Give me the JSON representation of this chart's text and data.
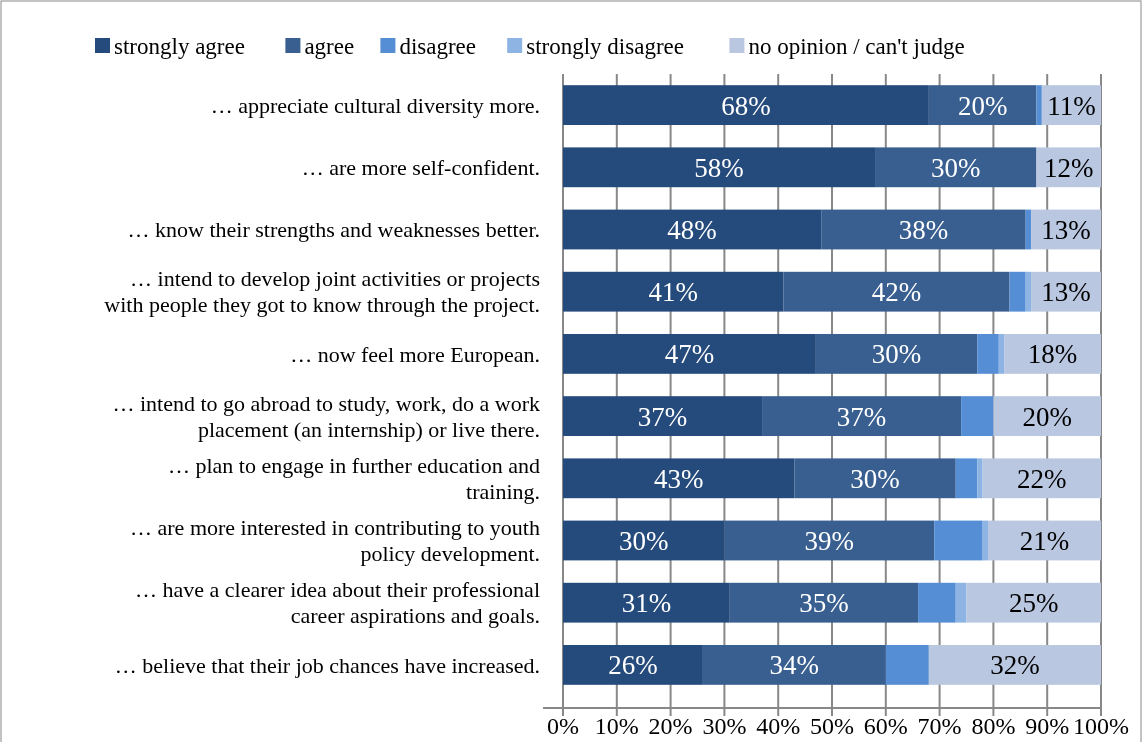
{
  "chart_data": {
    "type": "bar",
    "orientation": "horizontal",
    "stacked": true,
    "legend": "top",
    "grid": "x",
    "categories": [
      "… appreciate cultural diversity more.",
      "… are more self-confident.",
      "… know their strengths and weaknesses better.",
      "… intend to develop joint activities or projects\nwith people they got to know through the project.",
      "… now feel more European.",
      "… intend to go abroad to study, work, do a work\nplacement (an internship) or live there.",
      "… plan to engage in further education and\ntraining.",
      "… are more interested in contributing to youth\npolicy development.",
      "… have a clearer idea about their professional\ncareer aspirations and goals.",
      "… believe that their job chances have increased."
    ],
    "series": [
      {
        "name": "strongly agree",
        "color": "#254a7c",
        "values": [
          68,
          58,
          48,
          41,
          47,
          37,
          43,
          30,
          31,
          26
        ],
        "value_labels": [
          "68%",
          "58%",
          "48%",
          "41%",
          "47%",
          "37%",
          "43%",
          "30%",
          "31%",
          "26%"
        ]
      },
      {
        "name": "agree",
        "color": "#385f8f",
        "values": [
          20,
          30,
          38,
          42,
          30,
          37,
          30,
          39,
          35,
          34
        ],
        "value_labels": [
          "20%",
          "30%",
          "38%",
          "42%",
          "30%",
          "37%",
          "30%",
          "39%",
          "35%",
          "34%"
        ]
      },
      {
        "name": "disagree",
        "color": "#558ed5",
        "values": [
          1,
          0,
          1,
          3,
          4,
          6,
          4,
          9,
          7,
          8
        ],
        "value_labels": [
          null,
          null,
          null,
          null,
          null,
          null,
          null,
          null,
          null,
          null
        ]
      },
      {
        "name": "strongly disagree",
        "color": "#8db4e2",
        "values": [
          0,
          0,
          0,
          1,
          1,
          0,
          1,
          1,
          2,
          0
        ],
        "value_labels": [
          null,
          null,
          null,
          null,
          null,
          null,
          null,
          null,
          null,
          null
        ]
      },
      {
        "name": "no opinion / can't judge",
        "color": "#b9c7e1",
        "values": [
          11,
          12,
          13,
          13,
          18,
          20,
          22,
          21,
          25,
          32
        ],
        "value_labels": [
          "11%",
          "12%",
          "13%",
          "13%",
          "18%",
          "20%",
          "22%",
          "21%",
          "25%",
          "32%"
        ]
      }
    ],
    "xlim": [
      0,
      100
    ],
    "xticks": [
      {
        "value": 0,
        "label": "0%"
      },
      {
        "value": 10,
        "label": "10%"
      },
      {
        "value": 20,
        "label": "20%"
      },
      {
        "value": 30,
        "label": "30%"
      },
      {
        "value": 40,
        "label": "40%"
      },
      {
        "value": 50,
        "label": "50%"
      },
      {
        "value": 60,
        "label": "60%"
      },
      {
        "value": 70,
        "label": "70%"
      },
      {
        "value": 80,
        "label": "80%"
      },
      {
        "value": 90,
        "label": "90%"
      },
      {
        "value": 100,
        "label": "100%"
      }
    ]
  }
}
